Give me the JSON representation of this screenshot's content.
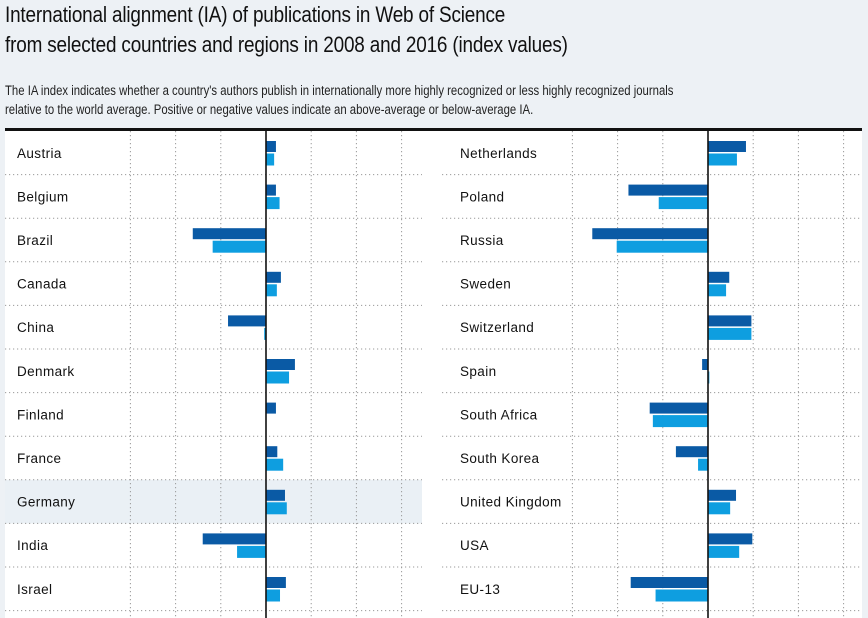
{
  "header": {
    "title_line1": "International alignment (IA) of publications in Web of Science",
    "title_line2": "from selected countries and regions in 2008 and 2016 (index values)",
    "description_line1": "The IA index indicates whether a country's authors publish in internationally more highly recognized or less highly recognized journals",
    "description_line2": "relative to the world average. Positive or negative values indicate an above-average or below-average IA."
  },
  "colors": {
    "series_2008": "#0a5aa5",
    "series_2016": "#0e9ee0",
    "highlight_row": "#eaf0f5",
    "zero_line": "#111111",
    "grid": "#999999"
  },
  "chart_data": {
    "type": "bar",
    "orientation": "horizontal",
    "title": "International alignment (IA) of publications in Web of Science from selected countries and regions in 2008 and 2016 (index values)",
    "xlabel": "",
    "ylabel": "",
    "xlim": [
      -30,
      35
    ],
    "x_gridlines": [
      -30,
      -20,
      -10,
      0,
      10,
      20,
      30
    ],
    "grid": true,
    "legend": "none visible",
    "highlighted_category": "Germany",
    "panels": [
      {
        "categories": [
          "Austria",
          "Belgium",
          "Brazil",
          "Canada",
          "China",
          "Denmark",
          "Finland",
          "France",
          "Germany",
          "India",
          "Israel"
        ],
        "series": [
          {
            "name": "2008",
            "values": [
              2.2,
              2.2,
              -16.2,
              3.3,
              -8.4,
              6.4,
              2.2,
              2.5,
              4.2,
              -14.0,
              4.4
            ]
          },
          {
            "name": "2016",
            "values": [
              1.8,
              3.0,
              -11.8,
              2.4,
              -0.4,
              5.1,
              0.0,
              3.8,
              4.6,
              -6.4,
              3.1
            ]
          }
        ]
      },
      {
        "categories": [
          "Netherlands",
          "Poland",
          "Russia",
          "Sweden",
          "Switzerland",
          "Spain",
          "South Africa",
          "South Korea",
          "United Kingdom",
          "USA",
          "EU-13"
        ],
        "series": [
          {
            "name": "2008",
            "values": [
              8.4,
              -17.6,
              -25.6,
              4.7,
              9.6,
              -1.3,
              -12.9,
              -7.1,
              6.2,
              9.8,
              -17.1
            ]
          },
          {
            "name": "2016",
            "values": [
              6.4,
              -10.9,
              -20.2,
              4.0,
              9.6,
              0.3,
              -12.2,
              -2.2,
              4.9,
              6.9,
              -11.6
            ]
          }
        ]
      }
    ]
  }
}
